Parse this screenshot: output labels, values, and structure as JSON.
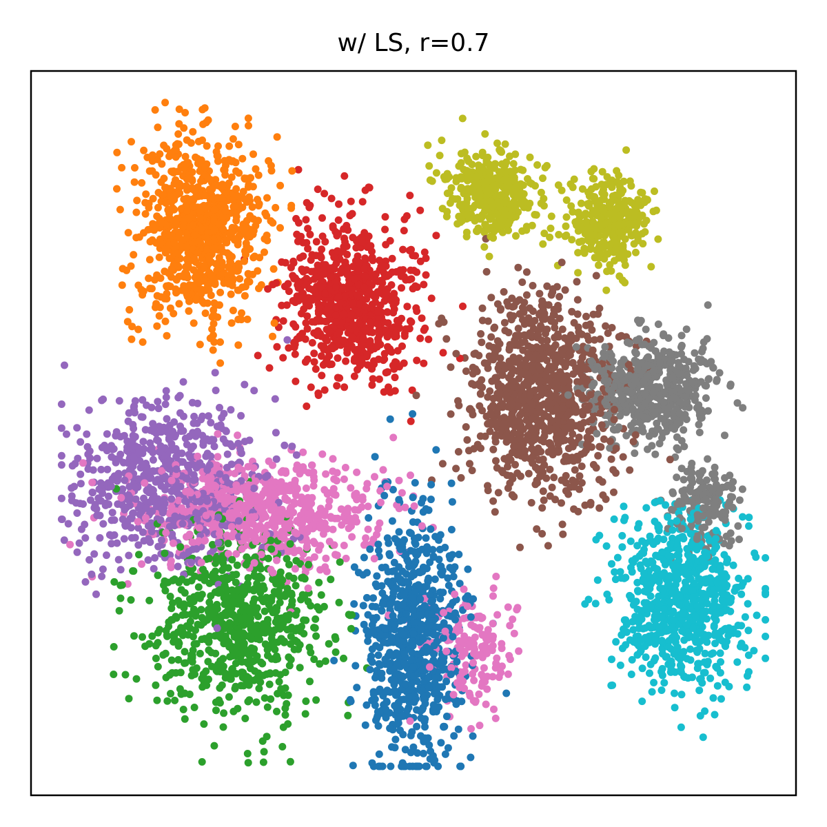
{
  "chart_data": {
    "type": "scatter",
    "title": "w/ LS, r=0.7",
    "xlabel": "",
    "ylabel": "",
    "x_ticks": "none",
    "y_ticks": "none",
    "grid": false,
    "legend": "none",
    "xlim": [
      0,
      100
    ],
    "ylim": [
      0,
      100
    ],
    "series": [
      {
        "color": "#ff7f0e",
        "center": [
          22,
          78
        ],
        "spread": [
          5.5,
          8.5
        ],
        "count": 850
      },
      {
        "color": "#d62728",
        "center": [
          42,
          68
        ],
        "spread": [
          6,
          7.5
        ],
        "count": 750
      },
      {
        "color": "#bcbd22",
        "center": [
          60,
          83
        ],
        "spread": [
          4,
          4
        ],
        "count": 380
      },
      {
        "color": "#bcbd22",
        "center": [
          76,
          79
        ],
        "spread": [
          3.5,
          4
        ],
        "count": 330
      },
      {
        "color": "#8c564b",
        "center": [
          67,
          55
        ],
        "spread": [
          6.5,
          9
        ],
        "count": 900
      },
      {
        "color": "#7f7f7f",
        "center": [
          81,
          56
        ],
        "spread": [
          6,
          5
        ],
        "count": 520
      },
      {
        "color": "#7f7f7f",
        "center": [
          88,
          40
        ],
        "spread": [
          3,
          3.5
        ],
        "count": 170
      },
      {
        "color": "#17becf",
        "center": [
          85,
          27
        ],
        "spread": [
          5.5,
          8
        ],
        "count": 760
      },
      {
        "color": "#9467bd",
        "center": [
          18,
          43
        ],
        "spread": [
          8,
          8
        ],
        "count": 650
      },
      {
        "color": "#e377c2",
        "center": [
          30,
          39
        ],
        "spread": [
          10,
          5
        ],
        "count": 700
      },
      {
        "color": "#2ca02c",
        "center": [
          27,
          24
        ],
        "spread": [
          7.5,
          9
        ],
        "count": 720
      },
      {
        "color": "#1f77b4",
        "center": [
          50,
          22
        ],
        "spread": [
          4.5,
          12
        ],
        "count": 760
      },
      {
        "color": "#e377c2",
        "center": [
          58,
          20
        ],
        "spread": [
          4,
          6
        ],
        "count": 160
      }
    ]
  }
}
